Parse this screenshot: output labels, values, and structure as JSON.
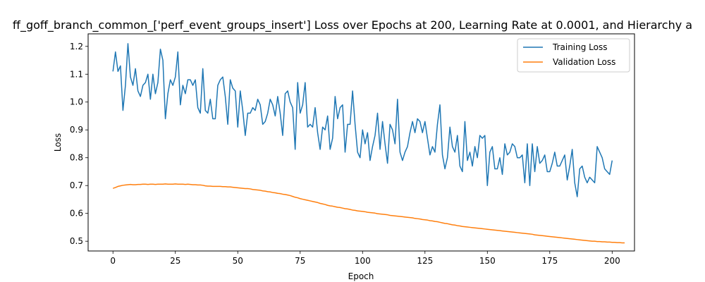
{
  "chart_data": {
    "type": "line",
    "title": "ff_goff_branch_common_['perf_event_groups_insert'] Loss over Epochs at 200, Learning Rate at 0.0001, and Hierarchy a",
    "xlabel": "Epoch",
    "ylabel": "Loss",
    "xlim": [
      -9.95,
      208.95
    ],
    "ylim": [
      0.465,
      1.245
    ],
    "xticks": [
      0,
      25,
      50,
      75,
      100,
      125,
      150,
      175,
      200
    ],
    "yticks": [
      0.5,
      0.6,
      0.7,
      0.8,
      0.9,
      1.0,
      1.1,
      1.2
    ],
    "xtick_labels": [
      "0",
      "25",
      "50",
      "75",
      "100",
      "125",
      "150",
      "175",
      "200"
    ],
    "ytick_labels": [
      "0.5",
      "0.6",
      "0.7",
      "0.8",
      "0.9",
      "1.0",
      "1.1",
      "1.2"
    ],
    "grid": false,
    "legend_position": "top-right",
    "series": [
      {
        "name": "Training Loss",
        "color": "#1f77b4",
        "start_epoch": 0,
        "values": [
          1.11,
          1.18,
          1.11,
          1.13,
          0.97,
          1.06,
          1.21,
          1.09,
          1.06,
          1.12,
          1.04,
          1.02,
          1.06,
          1.07,
          1.1,
          1.01,
          1.1,
          1.03,
          1.07,
          1.19,
          1.15,
          0.94,
          1.03,
          1.08,
          1.06,
          1.09,
          1.18,
          0.99,
          1.06,
          1.03,
          1.08,
          1.08,
          1.06,
          1.08,
          0.98,
          0.96,
          1.12,
          0.97,
          0.96,
          1.01,
          0.94,
          0.94,
          1.06,
          1.08,
          1.09,
          1.02,
          0.92,
          1.08,
          1.05,
          1.04,
          0.91,
          1.04,
          0.97,
          0.88,
          0.96,
          0.96,
          0.98,
          0.97,
          1.01,
          0.99,
          0.92,
          0.93,
          0.96,
          1.01,
          0.99,
          0.95,
          1.02,
          0.96,
          0.88,
          1.03,
          1.04,
          1.0,
          0.98,
          0.83,
          1.07,
          0.96,
          0.99,
          1.07,
          0.91,
          0.92,
          0.91,
          0.98,
          0.89,
          0.83,
          0.91,
          0.9,
          0.95,
          0.83,
          0.87,
          1.02,
          0.94,
          0.98,
          0.99,
          0.82,
          0.92,
          0.92,
          1.04,
          0.92,
          0.82,
          0.8,
          0.9,
          0.85,
          0.89,
          0.79,
          0.84,
          0.88,
          0.96,
          0.83,
          0.93,
          0.85,
          0.78,
          0.92,
          0.9,
          0.85,
          1.01,
          0.82,
          0.79,
          0.82,
          0.84,
          0.89,
          0.93,
          0.89,
          0.94,
          0.93,
          0.89,
          0.93,
          0.87,
          0.81,
          0.84,
          0.82,
          0.92,
          0.99,
          0.81,
          0.76,
          0.8,
          0.91,
          0.84,
          0.82,
          0.88,
          0.77,
          0.75,
          0.93,
          0.79,
          0.82,
          0.77,
          0.84,
          0.8,
          0.88,
          0.87,
          0.88,
          0.7,
          0.82,
          0.84,
          0.76,
          0.76,
          0.8,
          0.74,
          0.85,
          0.81,
          0.82,
          0.85,
          0.84,
          0.8,
          0.8,
          0.81,
          0.71,
          0.85,
          0.7,
          0.85,
          0.75,
          0.84,
          0.78,
          0.79,
          0.81,
          0.75,
          0.75,
          0.78,
          0.82,
          0.77,
          0.77,
          0.79,
          0.81,
          0.72,
          0.77,
          0.83,
          0.71,
          0.66,
          0.76,
          0.77,
          0.73,
          0.71,
          0.73,
          0.72,
          0.71,
          0.84,
          0.82,
          0.8,
          0.76,
          0.75,
          0.74,
          0.79
        ]
      },
      {
        "name": "Validation Loss",
        "color": "#ff7f0e",
        "start_epoch": 0,
        "values": [
          0.69,
          0.693,
          0.697,
          0.699,
          0.701,
          0.702,
          0.703,
          0.704,
          0.703,
          0.703,
          0.704,
          0.704,
          0.705,
          0.705,
          0.704,
          0.705,
          0.705,
          0.704,
          0.705,
          0.705,
          0.705,
          0.706,
          0.705,
          0.705,
          0.705,
          0.706,
          0.705,
          0.705,
          0.705,
          0.704,
          0.705,
          0.704,
          0.703,
          0.703,
          0.702,
          0.702,
          0.701,
          0.699,
          0.698,
          0.698,
          0.697,
          0.697,
          0.697,
          0.697,
          0.696,
          0.696,
          0.695,
          0.695,
          0.694,
          0.693,
          0.692,
          0.691,
          0.69,
          0.689,
          0.689,
          0.688,
          0.686,
          0.685,
          0.684,
          0.683,
          0.681,
          0.68,
          0.678,
          0.677,
          0.675,
          0.674,
          0.672,
          0.671,
          0.669,
          0.668,
          0.666,
          0.664,
          0.661,
          0.658,
          0.656,
          0.653,
          0.651,
          0.649,
          0.647,
          0.645,
          0.643,
          0.641,
          0.639,
          0.636,
          0.634,
          0.632,
          0.629,
          0.627,
          0.626,
          0.624,
          0.622,
          0.621,
          0.619,
          0.617,
          0.616,
          0.614,
          0.612,
          0.611,
          0.609,
          0.608,
          0.607,
          0.606,
          0.604,
          0.603,
          0.602,
          0.601,
          0.599,
          0.598,
          0.597,
          0.596,
          0.595,
          0.593,
          0.592,
          0.591,
          0.59,
          0.589,
          0.588,
          0.587,
          0.586,
          0.585,
          0.584,
          0.582,
          0.581,
          0.58,
          0.578,
          0.577,
          0.576,
          0.574,
          0.573,
          0.571,
          0.57,
          0.568,
          0.566,
          0.564,
          0.563,
          0.561,
          0.559,
          0.558,
          0.556,
          0.555,
          0.553,
          0.552,
          0.551,
          0.55,
          0.549,
          0.548,
          0.547,
          0.546,
          0.545,
          0.544,
          0.543,
          0.542,
          0.541,
          0.54,
          0.539,
          0.538,
          0.537,
          0.536,
          0.535,
          0.534,
          0.533,
          0.532,
          0.531,
          0.53,
          0.529,
          0.528,
          0.527,
          0.526,
          0.525,
          0.523,
          0.522,
          0.521,
          0.52,
          0.519,
          0.518,
          0.517,
          0.516,
          0.515,
          0.514,
          0.513,
          0.512,
          0.511,
          0.51,
          0.509,
          0.508,
          0.507,
          0.506,
          0.505,
          0.504,
          0.503,
          0.502,
          0.501,
          0.5,
          0.5,
          0.499,
          0.499,
          0.498,
          0.498,
          0.497,
          0.497,
          0.496,
          0.496,
          0.495,
          0.495,
          0.494,
          0.494
        ]
      }
    ]
  }
}
